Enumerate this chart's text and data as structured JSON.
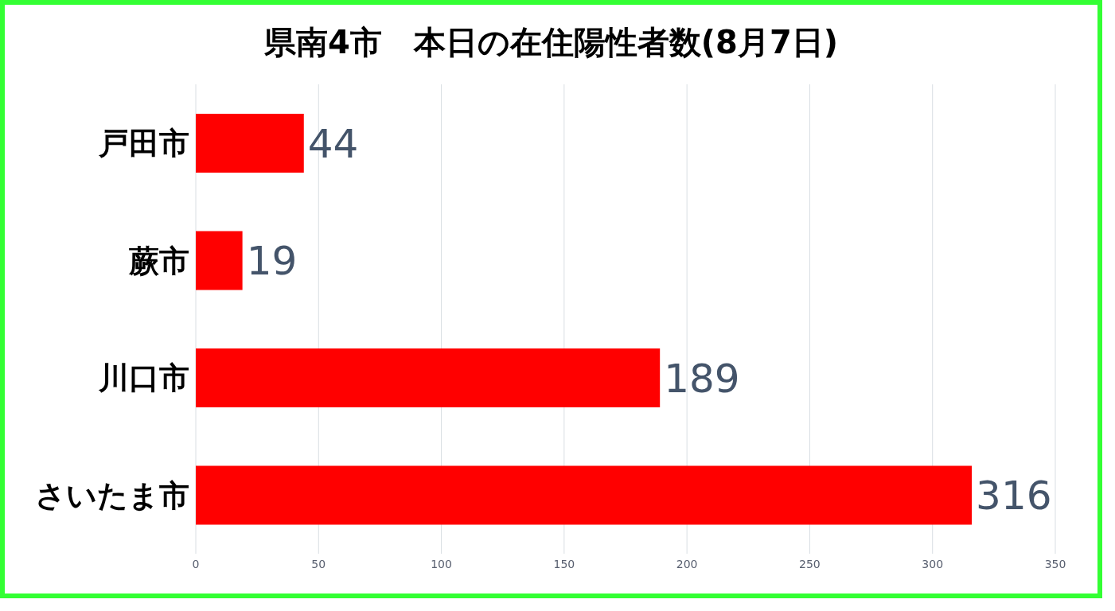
{
  "chart_data": {
    "type": "bar",
    "orientation": "horizontal",
    "title": "県南4市　本日の在住陽性者数(8月7日)",
    "categories": [
      "戸田市",
      "蕨市",
      "川口市",
      "さいたま市"
    ],
    "values": [
      44,
      19,
      189,
      316
    ],
    "color": "#ff0000",
    "xlim": [
      0,
      350
    ],
    "xticks": [
      0,
      50,
      100,
      150,
      200,
      250,
      300,
      350
    ],
    "grid": "x",
    "data_labels": true
  }
}
